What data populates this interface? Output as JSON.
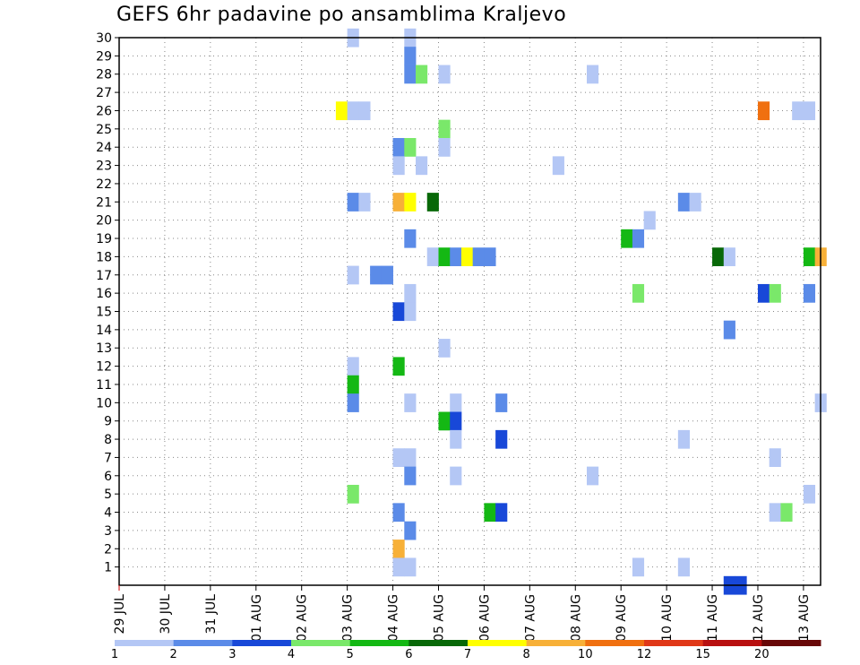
{
  "chart_data": {
    "type": "heatmap",
    "title": "GEFS 6hr padavine po ansamblima Kraljevo",
    "y_ticks": [
      "1",
      "2",
      "3",
      "4",
      "5",
      "6",
      "7",
      "8",
      "9",
      "10",
      "11",
      "12",
      "13",
      "14",
      "15",
      "16",
      "17",
      "18",
      "19",
      "20",
      "21",
      "22",
      "23",
      "24",
      "25",
      "26",
      "27",
      "28",
      "29",
      "30"
    ],
    "x_ticks": [
      "29 JUL",
      "30 JUL",
      "31 JUL",
      "01 AUG",
      "02 AUG",
      "03 AUG",
      "04 AUG",
      "05 AUG",
      "06 AUG",
      "07 AUG",
      "08 AUG",
      "09 AUG",
      "10 AUG",
      "11 AUG",
      "12 AUG",
      "13 AUG"
    ],
    "time_step_hours": 6,
    "grid": true,
    "legend_position": "bottom",
    "legend": {
      "labels": [
        "1",
        "2",
        "3",
        "4",
        "5",
        "6",
        "7",
        "8",
        "10",
        "12",
        "15",
        "20"
      ],
      "colors": [
        "#b4c7f5",
        "#5b8be8",
        "#1848d8",
        "#7ae86a",
        "#14b814",
        "#086808",
        "#ffff00",
        "#f7b038",
        "#f07010",
        "#e03818",
        "#b81010",
        "#680808"
      ]
    },
    "cells": [
      {
        "member": 30,
        "step": 20,
        "cls": 0
      },
      {
        "member": 30,
        "step": 25,
        "cls": 0
      },
      {
        "member": 29,
        "step": 25,
        "cls": 1
      },
      {
        "member": 28,
        "step": 25,
        "cls": 1
      },
      {
        "member": 28,
        "step": 26,
        "cls": 3
      },
      {
        "member": 28,
        "step": 28,
        "cls": 0
      },
      {
        "member": 28,
        "step": 41,
        "cls": 0
      },
      {
        "member": 26,
        "step": 19,
        "cls": 6
      },
      {
        "member": 26,
        "step": 20,
        "cls": 0
      },
      {
        "member": 26,
        "step": 21,
        "cls": 0
      },
      {
        "member": 26,
        "step": 56,
        "cls": 8
      },
      {
        "member": 26,
        "step": 59,
        "cls": 0
      },
      {
        "member": 26,
        "step": 60,
        "cls": 0
      },
      {
        "member": 25,
        "step": 28,
        "cls": 3
      },
      {
        "member": 24,
        "step": 24,
        "cls": 1
      },
      {
        "member": 24,
        "step": 25,
        "cls": 3
      },
      {
        "member": 24,
        "step": 28,
        "cls": 0
      },
      {
        "member": 23,
        "step": 24,
        "cls": 0
      },
      {
        "member": 23,
        "step": 26,
        "cls": 0
      },
      {
        "member": 23,
        "step": 38,
        "cls": 0
      },
      {
        "member": 21,
        "step": 20,
        "cls": 1
      },
      {
        "member": 21,
        "step": 21,
        "cls": 0
      },
      {
        "member": 21,
        "step": 24,
        "cls": 7
      },
      {
        "member": 21,
        "step": 25,
        "cls": 6
      },
      {
        "member": 21,
        "step": 27,
        "cls": 5
      },
      {
        "member": 21,
        "step": 49,
        "cls": 1
      },
      {
        "member": 21,
        "step": 50,
        "cls": 0
      },
      {
        "member": 20,
        "step": 46,
        "cls": 0
      },
      {
        "member": 19,
        "step": 25,
        "cls": 1
      },
      {
        "member": 19,
        "step": 44,
        "cls": 4
      },
      {
        "member": 19,
        "step": 45,
        "cls": 1
      },
      {
        "member": 18,
        "step": 27,
        "cls": 0
      },
      {
        "member": 18,
        "step": 28,
        "cls": 4
      },
      {
        "member": 18,
        "step": 29,
        "cls": 1
      },
      {
        "member": 18,
        "step": 30,
        "cls": 6
      },
      {
        "member": 18,
        "step": 31,
        "cls": 1
      },
      {
        "member": 18,
        "step": 32,
        "cls": 1
      },
      {
        "member": 18,
        "step": 52,
        "cls": 5
      },
      {
        "member": 18,
        "step": 53,
        "cls": 0
      },
      {
        "member": 18,
        "step": 60,
        "cls": 4
      },
      {
        "member": 18,
        "step": 61,
        "cls": 7
      },
      {
        "member": 17,
        "step": 20,
        "cls": 0
      },
      {
        "member": 17,
        "step": 22,
        "cls": 1
      },
      {
        "member": 17,
        "step": 23,
        "cls": 1
      },
      {
        "member": 16,
        "step": 25,
        "cls": 0
      },
      {
        "member": 16,
        "step": 45,
        "cls": 3
      },
      {
        "member": 16,
        "step": 56,
        "cls": 2
      },
      {
        "member": 16,
        "step": 57,
        "cls": 3
      },
      {
        "member": 16,
        "step": 60,
        "cls": 1
      },
      {
        "member": 15,
        "step": 24,
        "cls": 2
      },
      {
        "member": 15,
        "step": 25,
        "cls": 0
      },
      {
        "member": 14,
        "step": 53,
        "cls": 1
      },
      {
        "member": 13,
        "step": 28,
        "cls": 0
      },
      {
        "member": 12,
        "step": 20,
        "cls": 0
      },
      {
        "member": 12,
        "step": 24,
        "cls": 4
      },
      {
        "member": 11,
        "step": 20,
        "cls": 4
      },
      {
        "member": 10,
        "step": 20,
        "cls": 1
      },
      {
        "member": 10,
        "step": 25,
        "cls": 0
      },
      {
        "member": 10,
        "step": 29,
        "cls": 0
      },
      {
        "member": 10,
        "step": 33,
        "cls": 1
      },
      {
        "member": 10,
        "step": 61,
        "cls": 0
      },
      {
        "member": 9,
        "step": 28,
        "cls": 4
      },
      {
        "member": 9,
        "step": 29,
        "cls": 2
      },
      {
        "member": 8,
        "step": 29,
        "cls": 0
      },
      {
        "member": 8,
        "step": 33,
        "cls": 2
      },
      {
        "member": 8,
        "step": 49,
        "cls": 0
      },
      {
        "member": 7,
        "step": 24,
        "cls": 0
      },
      {
        "member": 7,
        "step": 25,
        "cls": 0
      },
      {
        "member": 7,
        "step": 57,
        "cls": 0
      },
      {
        "member": 6,
        "step": 25,
        "cls": 1
      },
      {
        "member": 6,
        "step": 29,
        "cls": 0
      },
      {
        "member": 6,
        "step": 41,
        "cls": 0
      },
      {
        "member": 5,
        "step": 20,
        "cls": 3
      },
      {
        "member": 5,
        "step": 60,
        "cls": 0
      },
      {
        "member": 4,
        "step": 24,
        "cls": 1
      },
      {
        "member": 4,
        "step": 32,
        "cls": 4
      },
      {
        "member": 4,
        "step": 33,
        "cls": 2
      },
      {
        "member": 4,
        "step": 57,
        "cls": 0
      },
      {
        "member": 4,
        "step": 58,
        "cls": 3
      },
      {
        "member": 3,
        "step": 25,
        "cls": 1
      },
      {
        "member": 2,
        "step": 24,
        "cls": 7
      },
      {
        "member": 1,
        "step": 24,
        "cls": 0
      },
      {
        "member": 1,
        "step": 25,
        "cls": 0
      },
      {
        "member": 1,
        "step": 45,
        "cls": 0
      },
      {
        "member": 1,
        "step": 49,
        "cls": 0
      },
      {
        "member": 0,
        "step": 53,
        "cls": 2
      },
      {
        "member": 0,
        "step": 54,
        "cls": 2
      }
    ]
  }
}
